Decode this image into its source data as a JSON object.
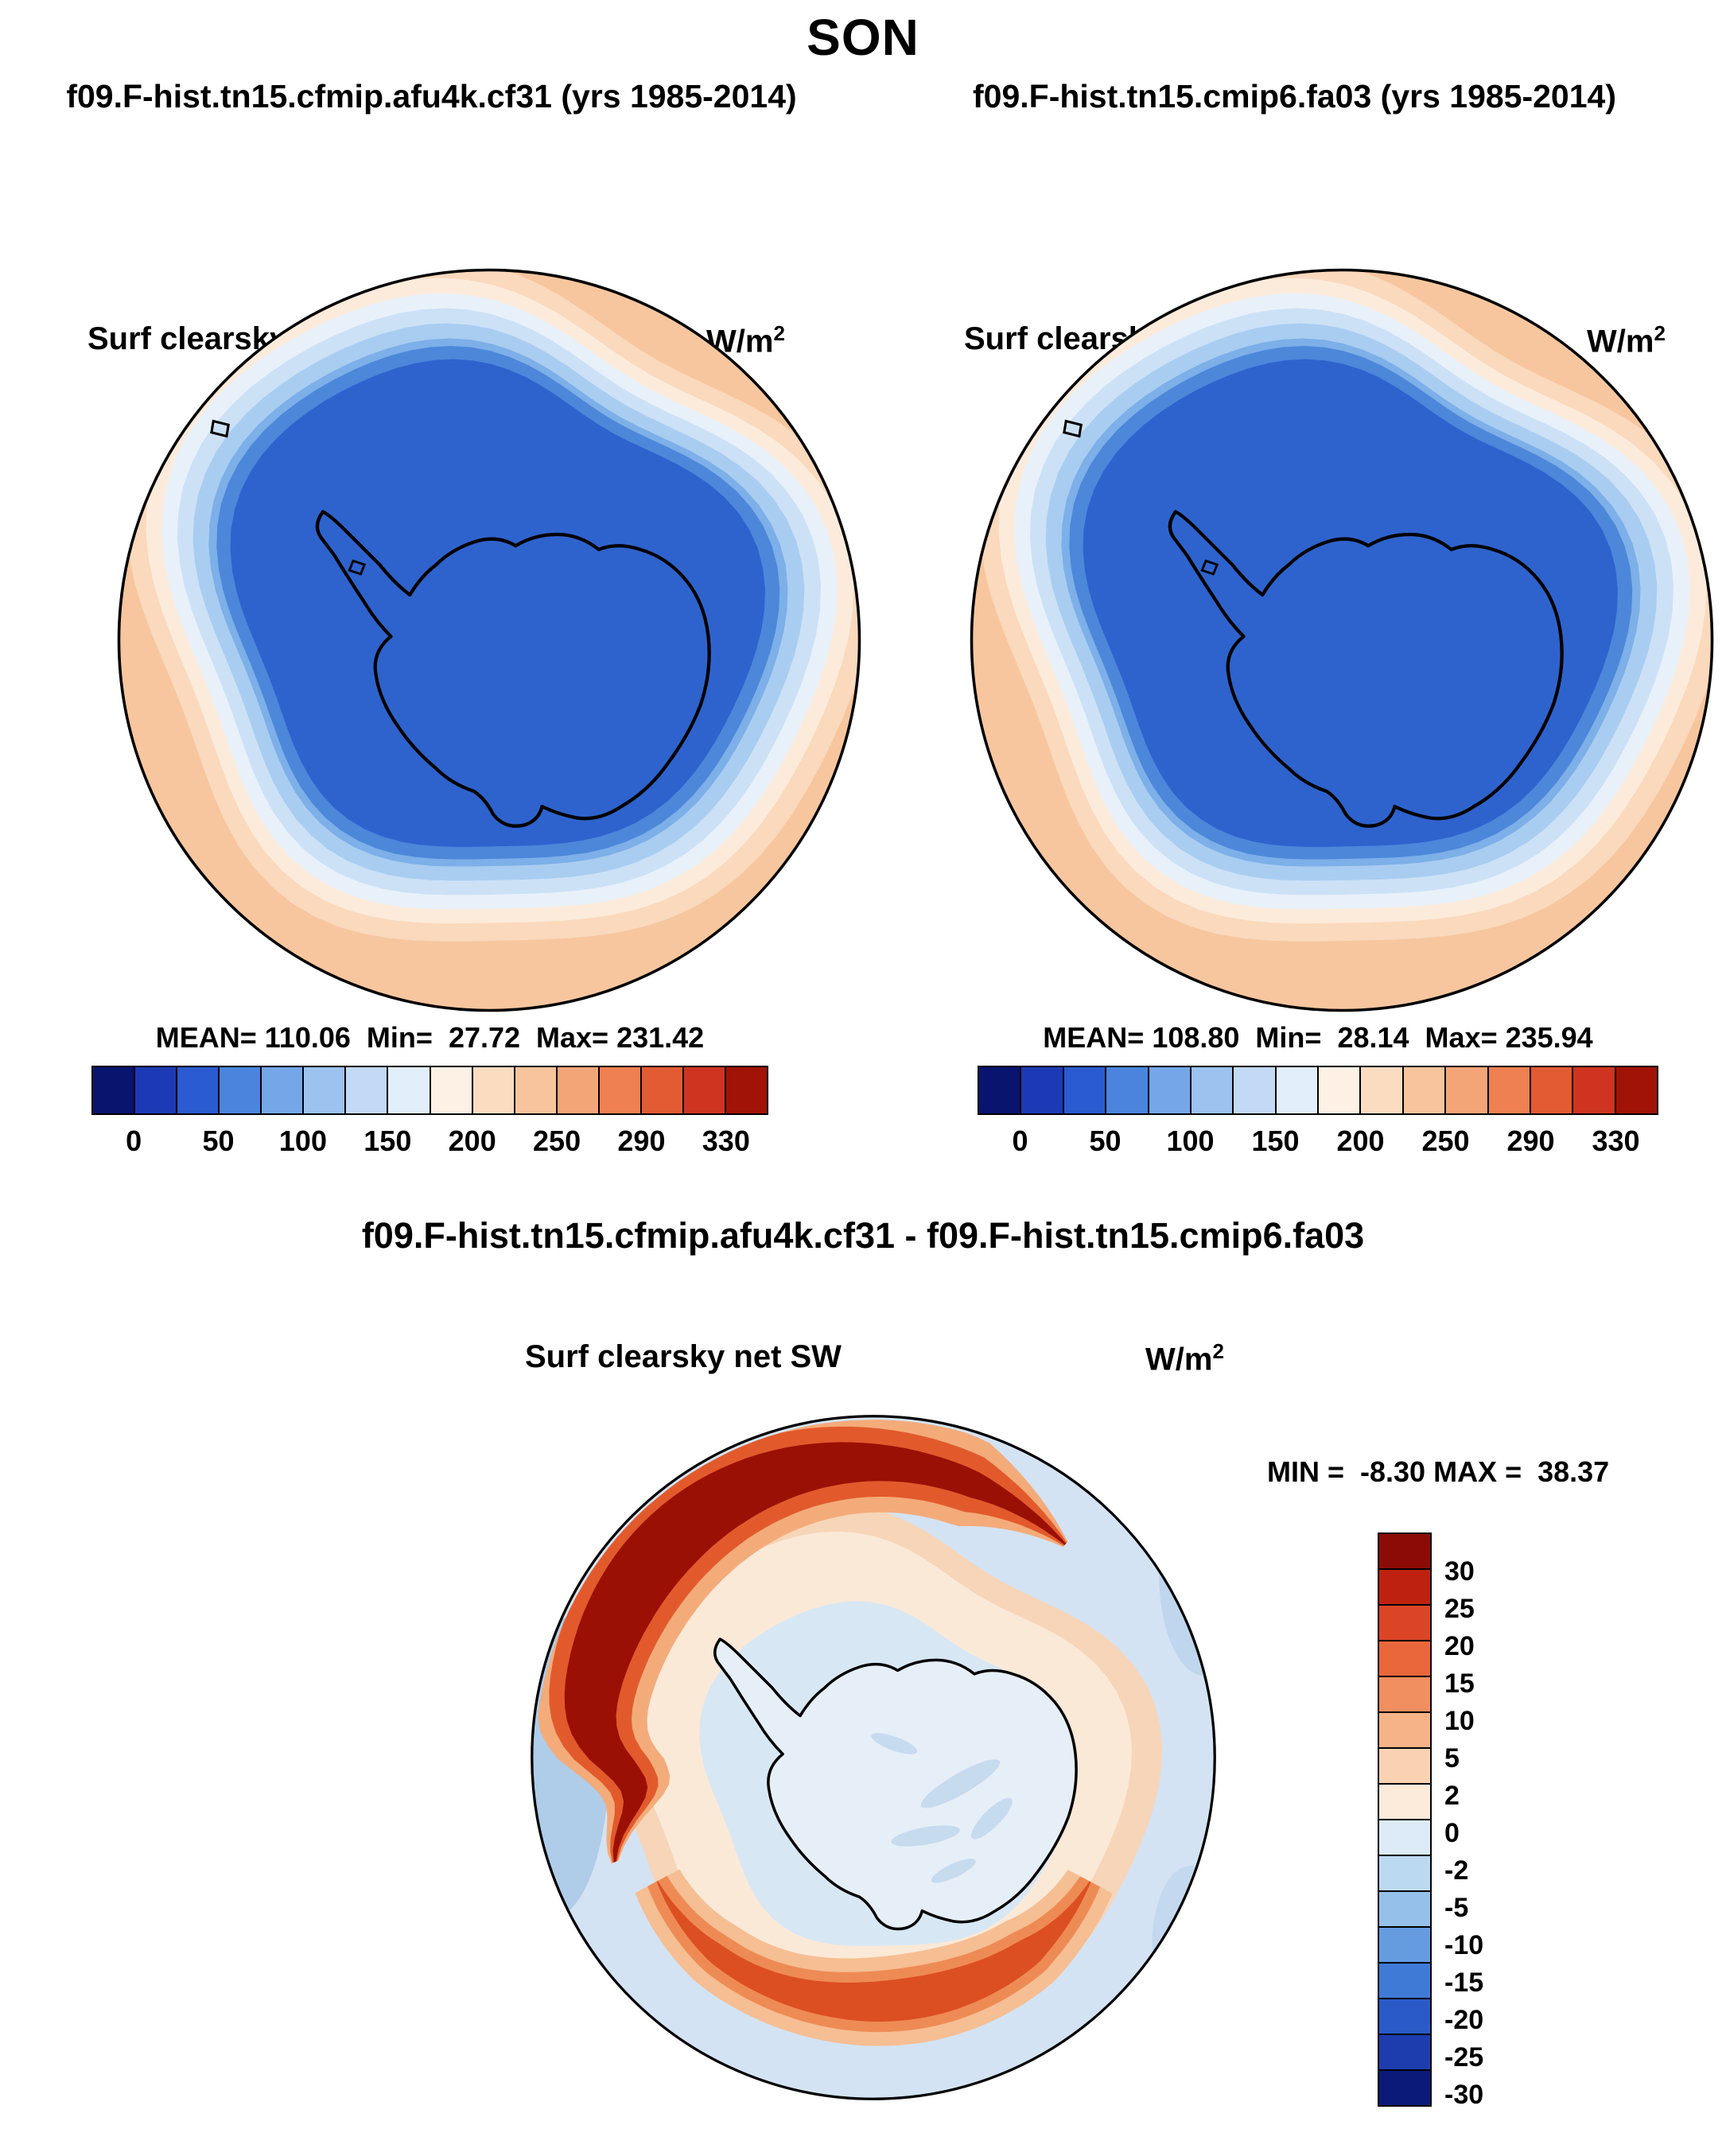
{
  "title": "SON",
  "units": {
    "text": "W/m",
    "sup": "2"
  },
  "panel_left": {
    "run_title": "f09.F-hist.tn15.cfmip.afu4k.cf31 (yrs 1985-2014)",
    "field_label": "Surf clearsky net SW",
    "stats_line": "MEAN= 110.06  Min=  27.72  Max= 231.42"
  },
  "panel_right": {
    "run_title": "f09.F-hist.tn15.cmip6.fa03 (yrs 1985-2014)",
    "field_label": "Surf clearsky net SW",
    "stats_line": "MEAN= 108.80  Min=  28.14  Max= 235.94"
  },
  "abs_colorbar": {
    "ticks": [
      "0",
      "50",
      "100",
      "150",
      "200",
      "250",
      "290",
      "330"
    ],
    "colors": [
      "#08146E",
      "#1C3AB5",
      "#2A5BD0",
      "#4A84DD",
      "#74A6E8",
      "#9CC2EF",
      "#C2DAF5",
      "#E2EEF9",
      "#FDF0E4",
      "#FBDCC0",
      "#F8C49D",
      "#F4A578",
      "#EE8051",
      "#E35B33",
      "#CF3420",
      "#A11207"
    ]
  },
  "diff_panel": {
    "title": "f09.F-hist.tn15.cfmip.afu4k.cf31 - f09.F-hist.tn15.cmip6.fa03",
    "field_label": "Surf clearsky net SW",
    "minmax_line": "MIN =  -8.30 MAX =  38.37",
    "colorbar": {
      "ticks": [
        "30",
        "25",
        "20",
        "15",
        "10",
        "5",
        "2",
        "0",
        "-2",
        "-5",
        "-10",
        "-15",
        "-20",
        "-25",
        "-30"
      ],
      "colors": [
        "#8C0B06",
        "#BF2110",
        "#DB4526",
        "#EA673C",
        "#F18F60",
        "#F6B388",
        "#FAD2B2",
        "#FCEADB",
        "#DCEBF7",
        "#BCD9F2",
        "#94C0EA",
        "#659CE0",
        "#3F7BD6",
        "#2A5AC8",
        "#1D3CAE",
        "#0B1A78"
      ]
    }
  },
  "chart_data": [
    {
      "type": "heatmap",
      "panel": "top-left",
      "title": "f09.F-hist.tn15.cfmip.afu4k.cf31 (yrs 1985-2014)",
      "variable": "Surf clearsky net SW",
      "units": "W/m^2",
      "season": "SON",
      "projection": "south_polar_stereographic",
      "region": "Antarctica",
      "stats": {
        "mean": 110.06,
        "min": 27.72,
        "max": 231.42
      },
      "levels": [
        0,
        25,
        50,
        75,
        100,
        125,
        150,
        175,
        200,
        225,
        250,
        270,
        290,
        310,
        330
      ],
      "tick_labels": [
        0,
        50,
        100,
        150,
        200,
        250,
        290,
        330
      ],
      "palette": "blue_to_red",
      "description": "Low net SW (blue, ~0-50 W/m^2) over Antarctic continent and sea ice, high net SW (orange, ~200-250 W/m^2) over surrounding ocean"
    },
    {
      "type": "heatmap",
      "panel": "top-right",
      "title": "f09.F-hist.tn15.cmip6.fa03 (yrs 1985-2014)",
      "variable": "Surf clearsky net SW",
      "units": "W/m^2",
      "season": "SON",
      "projection": "south_polar_stereographic",
      "region": "Antarctica",
      "stats": {
        "mean": 108.8,
        "min": 28.14,
        "max": 235.94
      },
      "levels": [
        0,
        25,
        50,
        75,
        100,
        125,
        150,
        175,
        200,
        225,
        250,
        270,
        290,
        310,
        330
      ],
      "tick_labels": [
        0,
        50,
        100,
        150,
        200,
        250,
        290,
        330
      ],
      "palette": "blue_to_red",
      "description": "Low net SW (blue) over Antarctic continent and sea ice, high net SW (orange) over surrounding ocean"
    },
    {
      "type": "heatmap",
      "panel": "difference",
      "title": "f09.F-hist.tn15.cfmip.afu4k.cf31 - f09.F-hist.tn15.cmip6.fa03",
      "variable": "Surf clearsky net SW",
      "units": "W/m^2",
      "season": "SON",
      "projection": "south_polar_stereographic",
      "region": "Antarctica",
      "stats": {
        "min": -8.3,
        "max": 38.37
      },
      "levels": [
        -30,
        -25,
        -20,
        -15,
        -10,
        -5,
        -2,
        0,
        2,
        5,
        10,
        15,
        20,
        25,
        30
      ],
      "palette": "blue_to_red",
      "description": "Mostly small negative differences (pale blue, -2 to 0) with strong positive band (dark red, >30) along sea-ice edge from 9 o'clock over the top to 1 o'clock, and moderate positive arc (orange, 5-15) along the bottom sea-ice edge"
    }
  ]
}
